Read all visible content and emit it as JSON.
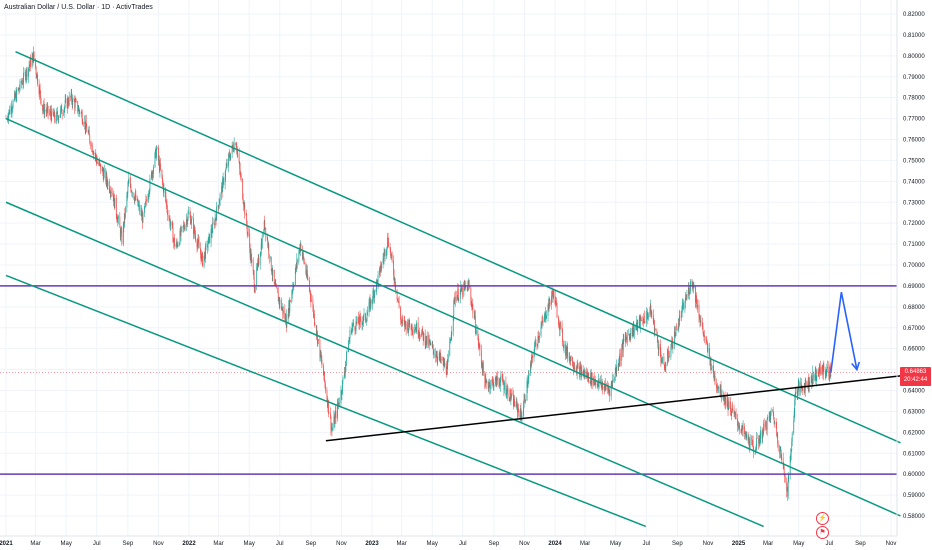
{
  "chart_data": {
    "type": "line",
    "title": "Australian Dollar / U.S. Dollar · 1D · ActivTrades",
    "ylim": [
      0.575,
      0.825
    ],
    "y_ticks": [
      0.58,
      0.59,
      0.6,
      0.61,
      0.62,
      0.63,
      0.64,
      0.65,
      0.66,
      0.67,
      0.68,
      0.69,
      0.7,
      0.71,
      0.72,
      0.73,
      0.74,
      0.75,
      0.76,
      0.77,
      0.78,
      0.79,
      0.8,
      0.81,
      0.82
    ],
    "y_tick_labels": [
      "0.58000",
      "0.59000",
      "0.60000",
      "0.61000",
      "0.62000",
      "0.63000",
      "0.64000",
      "0.65000",
      "0.66000",
      "0.67000",
      "0.68000",
      "0.69000",
      "0.70000",
      "0.71000",
      "0.72000",
      "0.73000",
      "0.74000",
      "0.75000",
      "0.76000",
      "0.77000",
      "0.78000",
      "0.79000",
      "0.80000",
      "0.81000",
      "0.82000"
    ],
    "x_ticks": [
      {
        "label": "2021",
        "date": "2021-01-01"
      },
      {
        "label": "Mar",
        "date": "2021-03-01"
      },
      {
        "label": "May",
        "date": "2021-05-01"
      },
      {
        "label": "Jul",
        "date": "2021-07-01"
      },
      {
        "label": "Sep",
        "date": "2021-09-01"
      },
      {
        "label": "Nov",
        "date": "2021-11-01"
      },
      {
        "label": "2022",
        "date": "2022-01-01"
      },
      {
        "label": "Mar",
        "date": "2022-03-01"
      },
      {
        "label": "May",
        "date": "2022-05-01"
      },
      {
        "label": "Jul",
        "date": "2022-07-01"
      },
      {
        "label": "Sep",
        "date": "2022-09-01"
      },
      {
        "label": "Nov",
        "date": "2022-11-01"
      },
      {
        "label": "2023",
        "date": "2023-01-01"
      },
      {
        "label": "Mar",
        "date": "2023-03-01"
      },
      {
        "label": "May",
        "date": "2023-05-01"
      },
      {
        "label": "Jul",
        "date": "2023-07-01"
      },
      {
        "label": "Sep",
        "date": "2023-09-01"
      },
      {
        "label": "Nov",
        "date": "2023-11-01"
      },
      {
        "label": "2024",
        "date": "2024-01-01"
      },
      {
        "label": "Mar",
        "date": "2024-03-01"
      },
      {
        "label": "May",
        "date": "2024-05-01"
      },
      {
        "label": "Jul",
        "date": "2024-07-01"
      },
      {
        "label": "Sep",
        "date": "2024-09-01"
      },
      {
        "label": "Nov",
        "date": "2024-11-01"
      },
      {
        "label": "2025",
        "date": "2025-01-01"
      },
      {
        "label": "Mar",
        "date": "2025-03-01"
      },
      {
        "label": "May",
        "date": "2025-05-01"
      },
      {
        "label": "Jul",
        "date": "2025-07-01"
      },
      {
        "label": "Sep",
        "date": "2025-09-01"
      },
      {
        "label": "Nov",
        "date": "2025-11-01"
      }
    ],
    "series": [
      {
        "values": [
          {
            "x": "2021-01-01",
            "y": 0.77
          },
          {
            "x": "2021-02-25",
            "y": 0.8
          },
          {
            "x": "2021-03-15",
            "y": 0.775
          },
          {
            "x": "2021-04-10",
            "y": 0.77
          },
          {
            "x": "2021-05-10",
            "y": 0.78
          },
          {
            "x": "2021-06-01",
            "y": 0.772
          },
          {
            "x": "2021-07-01",
            "y": 0.75
          },
          {
            "x": "2021-08-01",
            "y": 0.735
          },
          {
            "x": "2021-08-20",
            "y": 0.712
          },
          {
            "x": "2021-09-03",
            "y": 0.74
          },
          {
            "x": "2021-10-01",
            "y": 0.722
          },
          {
            "x": "2021-10-28",
            "y": 0.755
          },
          {
            "x": "2021-11-20",
            "y": 0.725
          },
          {
            "x": "2021-12-05",
            "y": 0.708
          },
          {
            "x": "2022-01-01",
            "y": 0.725
          },
          {
            "x": "2022-01-28",
            "y": 0.702
          },
          {
            "x": "2022-02-20",
            "y": 0.72
          },
          {
            "x": "2022-03-20",
            "y": 0.75
          },
          {
            "x": "2022-04-04",
            "y": 0.76
          },
          {
            "x": "2022-05-01",
            "y": 0.71
          },
          {
            "x": "2022-05-12",
            "y": 0.69
          },
          {
            "x": "2022-06-01",
            "y": 0.72
          },
          {
            "x": "2022-06-20",
            "y": 0.69
          },
          {
            "x": "2022-07-14",
            "y": 0.673
          },
          {
            "x": "2022-08-11",
            "y": 0.71
          },
          {
            "x": "2022-09-01",
            "y": 0.685
          },
          {
            "x": "2022-10-01",
            "y": 0.64
          },
          {
            "x": "2022-10-13",
            "y": 0.621
          },
          {
            "x": "2022-11-01",
            "y": 0.64
          },
          {
            "x": "2022-11-20",
            "y": 0.67
          },
          {
            "x": "2022-12-20",
            "y": 0.675
          },
          {
            "x": "2023-01-15",
            "y": 0.695
          },
          {
            "x": "2023-02-02",
            "y": 0.713
          },
          {
            "x": "2023-03-01",
            "y": 0.672
          },
          {
            "x": "2023-04-01",
            "y": 0.67
          },
          {
            "x": "2023-05-01",
            "y": 0.66
          },
          {
            "x": "2023-05-31",
            "y": 0.65
          },
          {
            "x": "2023-06-15",
            "y": 0.685
          },
          {
            "x": "2023-07-13",
            "y": 0.69
          },
          {
            "x": "2023-08-15",
            "y": 0.643
          },
          {
            "x": "2023-09-15",
            "y": 0.645
          },
          {
            "x": "2023-10-26",
            "y": 0.628
          },
          {
            "x": "2023-11-20",
            "y": 0.66
          },
          {
            "x": "2023-12-28",
            "y": 0.687
          },
          {
            "x": "2024-01-20",
            "y": 0.66
          },
          {
            "x": "2024-02-15",
            "y": 0.65
          },
          {
            "x": "2024-04-19",
            "y": 0.64
          },
          {
            "x": "2024-05-20",
            "y": 0.665
          },
          {
            "x": "2024-07-10",
            "y": 0.678
          },
          {
            "x": "2024-08-05",
            "y": 0.65
          },
          {
            "x": "2024-09-30",
            "y": 0.693
          },
          {
            "x": "2024-10-20",
            "y": 0.67
          },
          {
            "x": "2024-11-15",
            "y": 0.645
          },
          {
            "x": "2025-01-10",
            "y": 0.62
          },
          {
            "x": "2025-02-01",
            "y": 0.612
          },
          {
            "x": "2025-03-10",
            "y": 0.63
          },
          {
            "x": "2025-04-09",
            "y": 0.592
          },
          {
            "x": "2025-04-25",
            "y": 0.64
          },
          {
            "x": "2025-05-15",
            "y": 0.643
          },
          {
            "x": "2025-06-15",
            "y": 0.65
          },
          {
            "x": "2025-07-04",
            "y": 0.6486
          }
        ]
      }
    ],
    "horizontal_levels": [
      0.69,
      0.6
    ],
    "channel_lines": [
      {
        "from": {
          "x": "2021-01-20",
          "y": 0.802
        },
        "to": {
          "x": "2025-11-20",
          "y": 0.615
        }
      },
      {
        "from": {
          "x": "2021-01-01",
          "y": 0.77
        },
        "to": {
          "x": "2025-11-20",
          "y": 0.58
        }
      },
      {
        "from": {
          "x": "2021-01-01",
          "y": 0.73
        },
        "to": {
          "x": "2025-02-20",
          "y": 0.575
        }
      },
      {
        "from": {
          "x": "2021-01-01",
          "y": 0.695
        },
        "to": {
          "x": "2024-06-30",
          "y": 0.575
        }
      }
    ],
    "support_line": {
      "from": {
        "x": "2022-10-01",
        "y": 0.616
      },
      "to": {
        "x": "2025-11-20",
        "y": 0.647
      }
    },
    "projection": [
      {
        "x": "2025-07-04",
        "y": 0.6486
      },
      {
        "x": "2025-07-25",
        "y": 0.687
      },
      {
        "x": "2025-08-25",
        "y": 0.65
      }
    ],
    "last_price": 0.6486,
    "price_label": "0.64863",
    "countdown_label": "20:42:44"
  },
  "colors": {
    "candle_up": "#26a69a",
    "candle_down": "#ef5350",
    "channel": "#089981",
    "level": "#673ab7",
    "support": "#000000",
    "projection": "#2962ff",
    "price_badge": "#f23645"
  },
  "icons": [
    "lightning-icon",
    "flag-icon"
  ]
}
